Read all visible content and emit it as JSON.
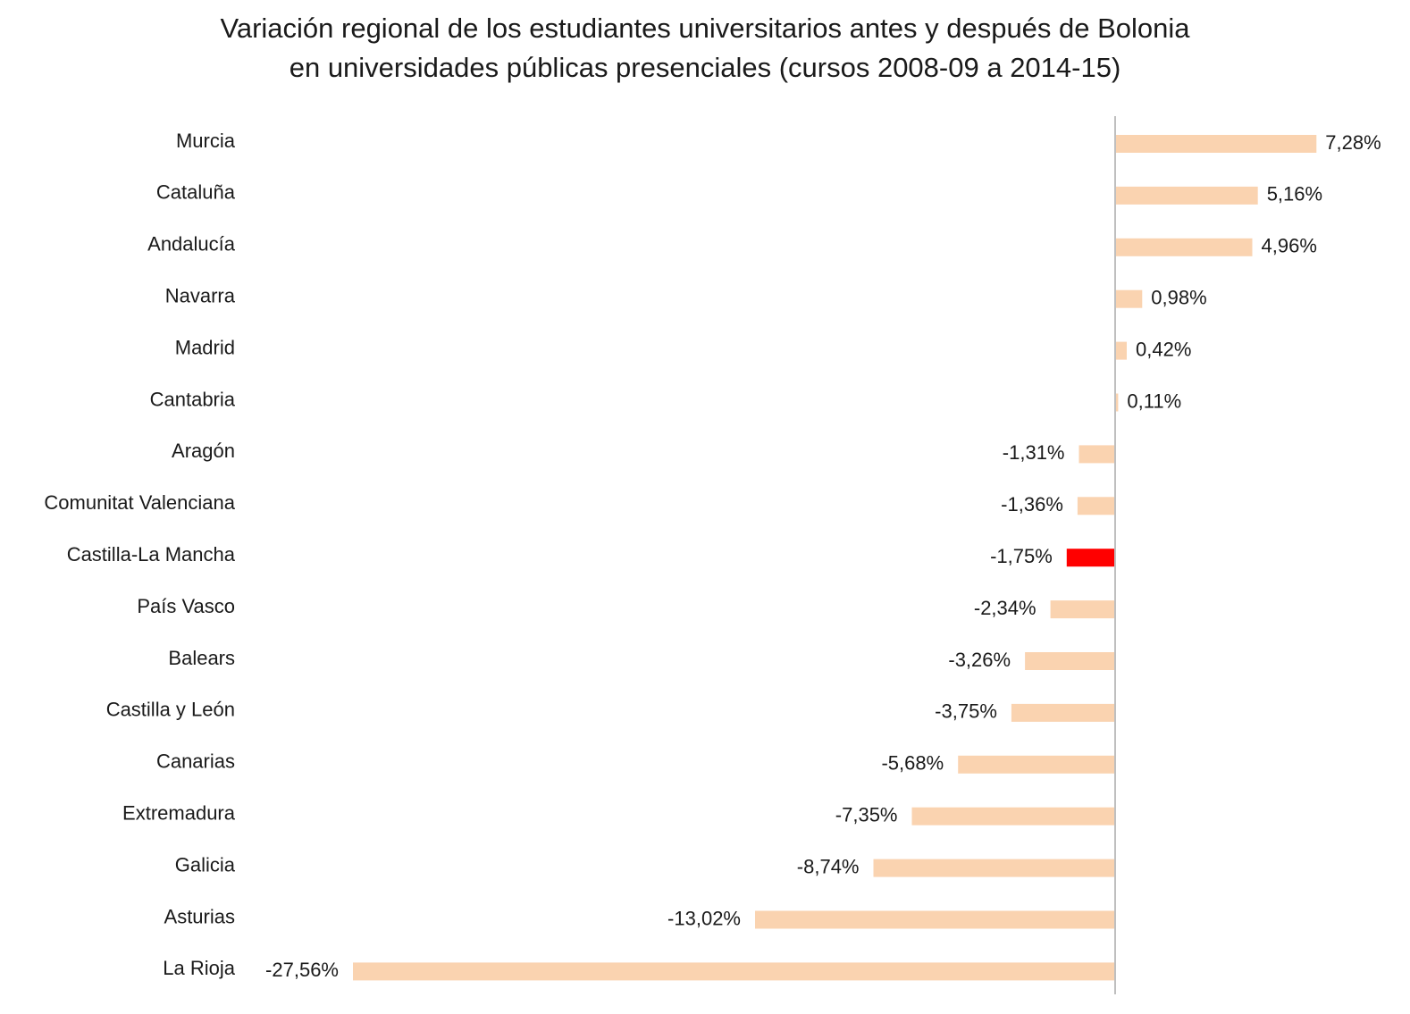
{
  "chart_data": {
    "type": "bar",
    "orientation": "horizontal",
    "title": "Variación regional de los estudiantes universitarios antes y después de Bolonia",
    "subtitle": "en universidades públicas presenciales (cursos 2008-09 a 2014-15)",
    "categories": [
      "Murcia",
      "Cataluña",
      "Andalucía",
      "Navarra",
      "Madrid",
      "Cantabria",
      "Aragón",
      "Comunitat Valenciana",
      "Castilla-La Mancha",
      "País Vasco",
      "Balears",
      "Castilla y León",
      "Canarias",
      "Extremadura",
      "Galicia",
      "Asturias",
      "La Rioja"
    ],
    "values": [
      7.28,
      5.16,
      4.96,
      0.98,
      0.42,
      0.11,
      -1.31,
      -1.36,
      -1.75,
      -2.34,
      -3.26,
      -3.75,
      -5.68,
      -7.35,
      -8.74,
      -13.02,
      -27.56
    ],
    "value_labels": [
      "7,28%",
      "5,16%",
      "4,96%",
      "0,98%",
      "0,42%",
      "0,11%",
      "-1,31%",
      "-1,36%",
      "-1,75%",
      "-2,34%",
      "-3,26%",
      "-3,75%",
      "-5,68%",
      "-7,35%",
      "-8,74%",
      "-13,02%",
      "-27,56%"
    ],
    "highlight_category": "Castilla-La Mancha",
    "colors": {
      "bar": "#fad3b0",
      "highlight": "#ff0000",
      "axis": "#bfbfbf"
    },
    "xlim": [
      -27.56,
      7.28
    ],
    "grid": false,
    "legend": "none"
  }
}
